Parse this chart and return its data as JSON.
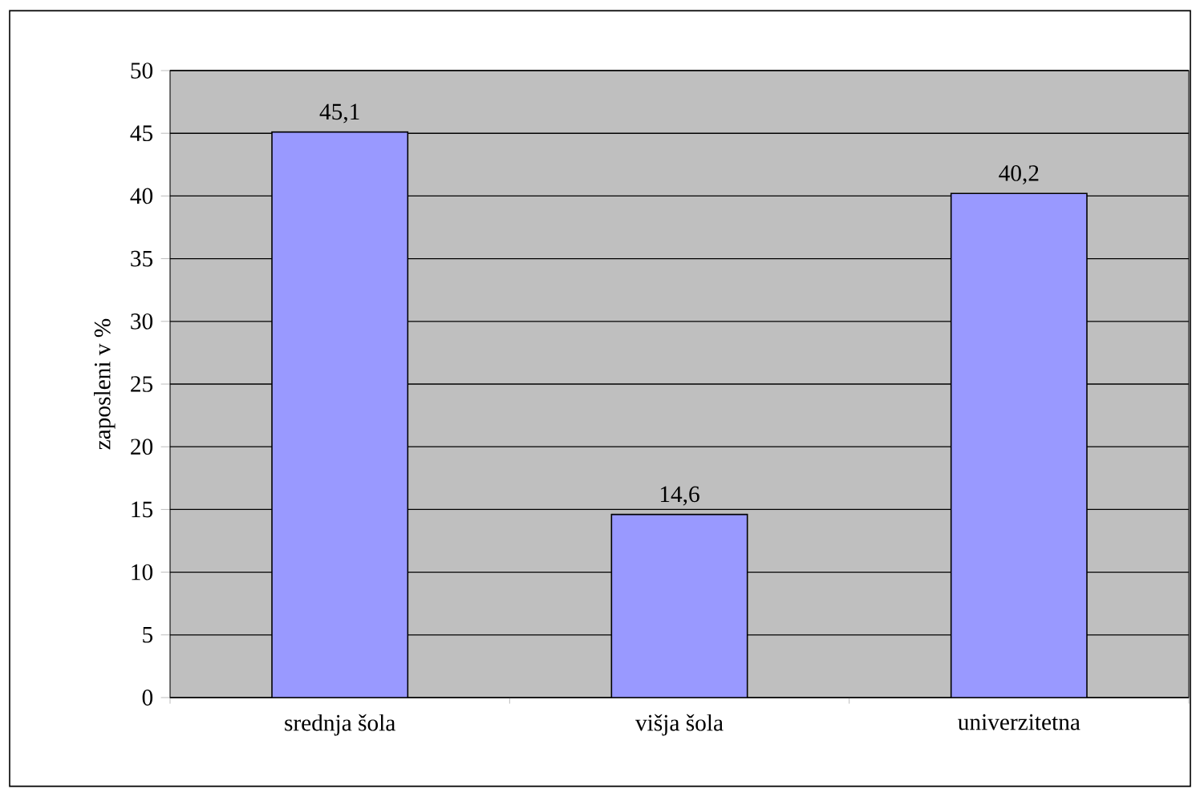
{
  "chart_data": {
    "type": "bar",
    "ylabel": "zaposleni v %",
    "categories": [
      "srednja šola",
      "višja šola",
      "univerzitetna"
    ],
    "values": [
      45.1,
      14.6,
      40.2
    ],
    "value_labels": [
      "45,1",
      "14,6",
      "40,2"
    ],
    "color": "#9999ff",
    "ylim": [
      0,
      50
    ],
    "yticks": [
      0,
      5,
      10,
      15,
      20,
      25,
      30,
      35,
      40,
      45,
      50
    ],
    "grid": "y"
  }
}
